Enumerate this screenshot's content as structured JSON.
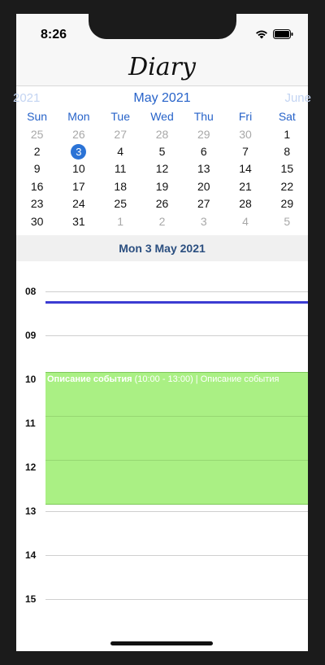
{
  "status": {
    "time": "8:26",
    "icons": [
      "wifi-icon",
      "battery-icon"
    ]
  },
  "nav": {
    "title": "Diary"
  },
  "calendar": {
    "prev_month": "2021",
    "current_month": "May 2021",
    "next_month": "June",
    "weekdays": [
      "Sun",
      "Mon",
      "Tue",
      "Wed",
      "Thu",
      "Fri",
      "Sat"
    ],
    "weeks": [
      [
        {
          "d": "25",
          "m": true
        },
        {
          "d": "26",
          "m": true
        },
        {
          "d": "27",
          "m": true
        },
        {
          "d": "28",
          "m": true
        },
        {
          "d": "29",
          "m": true
        },
        {
          "d": "30",
          "m": true
        },
        {
          "d": "1"
        }
      ],
      [
        {
          "d": "2"
        },
        {
          "d": "3",
          "sel": true
        },
        {
          "d": "4"
        },
        {
          "d": "5"
        },
        {
          "d": "6"
        },
        {
          "d": "7"
        },
        {
          "d": "8"
        }
      ],
      [
        {
          "d": "9"
        },
        {
          "d": "10"
        },
        {
          "d": "11"
        },
        {
          "d": "12"
        },
        {
          "d": "13"
        },
        {
          "d": "14"
        },
        {
          "d": "15"
        }
      ],
      [
        {
          "d": "16"
        },
        {
          "d": "17"
        },
        {
          "d": "18"
        },
        {
          "d": "19"
        },
        {
          "d": "20"
        },
        {
          "d": "21"
        },
        {
          "d": "22"
        }
      ],
      [
        {
          "d": "23"
        },
        {
          "d": "24"
        },
        {
          "d": "25"
        },
        {
          "d": "26"
        },
        {
          "d": "27"
        },
        {
          "d": "28"
        },
        {
          "d": "29"
        }
      ],
      [
        {
          "d": "30"
        },
        {
          "d": "31"
        },
        {
          "d": "1",
          "m": true
        },
        {
          "d": "2",
          "m": true
        },
        {
          "d": "3",
          "m": true
        },
        {
          "d": "4",
          "m": true
        },
        {
          "d": "5",
          "m": true
        }
      ]
    ]
  },
  "day_view": {
    "header": "Mon 3 May 2021",
    "hours": [
      "08",
      "09",
      "10",
      "11",
      "12",
      "13",
      "14",
      "15"
    ],
    "event": {
      "title": "Описание события",
      "time": "(10:00 - 13:00)",
      "separator": "|",
      "description": "Описание события",
      "color": "#aaf084"
    },
    "now_line_color": "#3c3cd2"
  },
  "colors": {
    "accent": "#2763c9",
    "selected_day": "#2b73d6",
    "header_text": "#2b4f80"
  }
}
